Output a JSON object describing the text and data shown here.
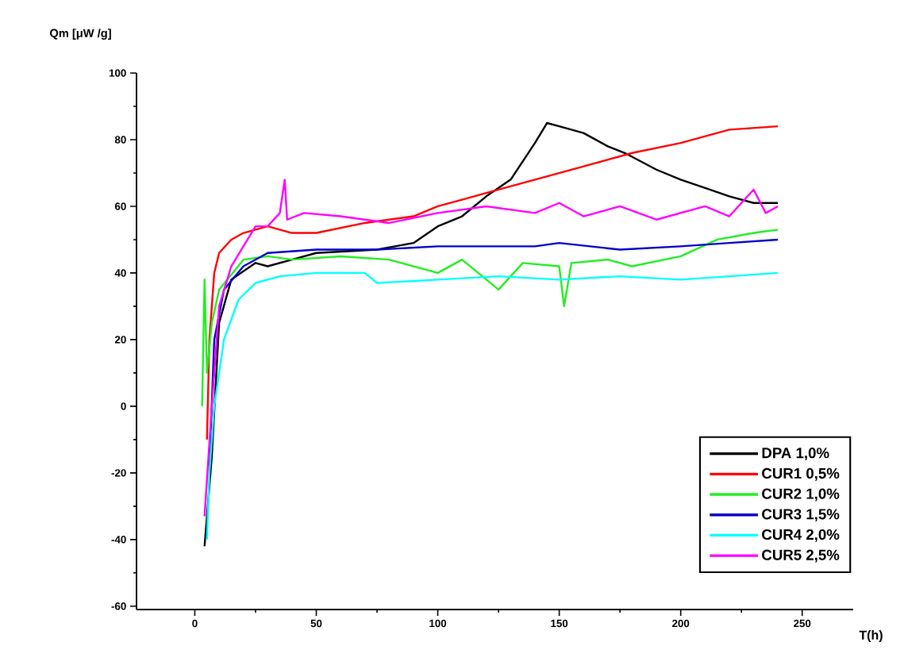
{
  "chart_data": {
    "type": "line",
    "xlabel": "T(h)",
    "ylabel": "Qm [μW /g]",
    "xlim": [
      -24,
      271
    ],
    "ylim": [
      -61,
      100
    ],
    "xticks": [
      0,
      50,
      100,
      150,
      200,
      250
    ],
    "yticks": [
      -60,
      -40,
      -20,
      0,
      20,
      40,
      60,
      80,
      100
    ],
    "grid": false,
    "legend": "bottom right",
    "marker": "none",
    "line_style": "solid",
    "series": [
      {
        "name": "DPA 1,0%",
        "color": "#000000",
        "x": [
          4,
          7,
          10,
          15,
          25,
          30,
          40,
          50,
          75,
          90,
          100,
          110,
          120,
          130,
          140,
          145,
          150,
          160,
          170,
          177,
          190,
          200,
          212,
          220,
          230,
          240
        ],
        "values": [
          -42,
          -15,
          25,
          38,
          43,
          42,
          44,
          46,
          47,
          49,
          54,
          57,
          63,
          68,
          79,
          85,
          84,
          82,
          78,
          76,
          71,
          68,
          65,
          63,
          61,
          61
        ]
      },
      {
        "name": "CUR1 0,5%",
        "color": "#ff0000",
        "x": [
          5,
          6,
          8,
          10,
          15,
          20,
          30,
          40,
          50,
          70,
          90,
          100,
          110,
          125,
          140,
          160,
          180,
          200,
          220,
          240
        ],
        "values": [
          -10,
          20,
          40,
          46,
          50,
          52,
          54,
          52,
          52,
          55,
          57,
          60,
          62,
          65,
          68,
          72,
          76,
          79,
          83,
          84
        ]
      },
      {
        "name": "CUR2 1,0%",
        "color": "#22ee22",
        "x": [
          3,
          4,
          5,
          7,
          10,
          20,
          30,
          40,
          60,
          80,
          100,
          110,
          125,
          135,
          150,
          152,
          155,
          170,
          180,
          200,
          215,
          230,
          240
        ],
        "values": [
          0,
          38,
          10,
          25,
          35,
          44,
          45,
          44,
          45,
          44,
          40,
          44,
          35,
          43,
          42,
          30,
          43,
          44,
          42,
          45,
          50,
          52,
          53
        ]
      },
      {
        "name": "CUR3 1,5%",
        "color": "#0000cc",
        "x": [
          6,
          8,
          12,
          20,
          30,
          50,
          75,
          100,
          125,
          140,
          150,
          175,
          200,
          220,
          240
        ],
        "values": [
          -18,
          20,
          35,
          42,
          46,
          47,
          47,
          48,
          48,
          48,
          49,
          47,
          48,
          49,
          50
        ]
      },
      {
        "name": "CUR4 2,0%",
        "color": "#00ffff",
        "x": [
          5,
          6,
          8,
          12,
          18,
          25,
          35,
          50,
          70,
          75,
          100,
          125,
          150,
          175,
          200,
          220,
          240
        ],
        "values": [
          -40,
          -20,
          0,
          20,
          32,
          37,
          39,
          40,
          40,
          37,
          38,
          39,
          38,
          39,
          38,
          39,
          40
        ]
      },
      {
        "name": "CUR5 2,5%",
        "color": "#ff00ff",
        "x": [
          4,
          7,
          10,
          15,
          20,
          25,
          30,
          35,
          37,
          38,
          45,
          60,
          80,
          100,
          120,
          140,
          150,
          160,
          175,
          190,
          210,
          220,
          230,
          235,
          240
        ],
        "values": [
          -33,
          0,
          30,
          42,
          48,
          54,
          54,
          58,
          68,
          56,
          58,
          57,
          55,
          58,
          60,
          58,
          61,
          57,
          60,
          56,
          60,
          57,
          65,
          58,
          60
        ]
      }
    ]
  }
}
